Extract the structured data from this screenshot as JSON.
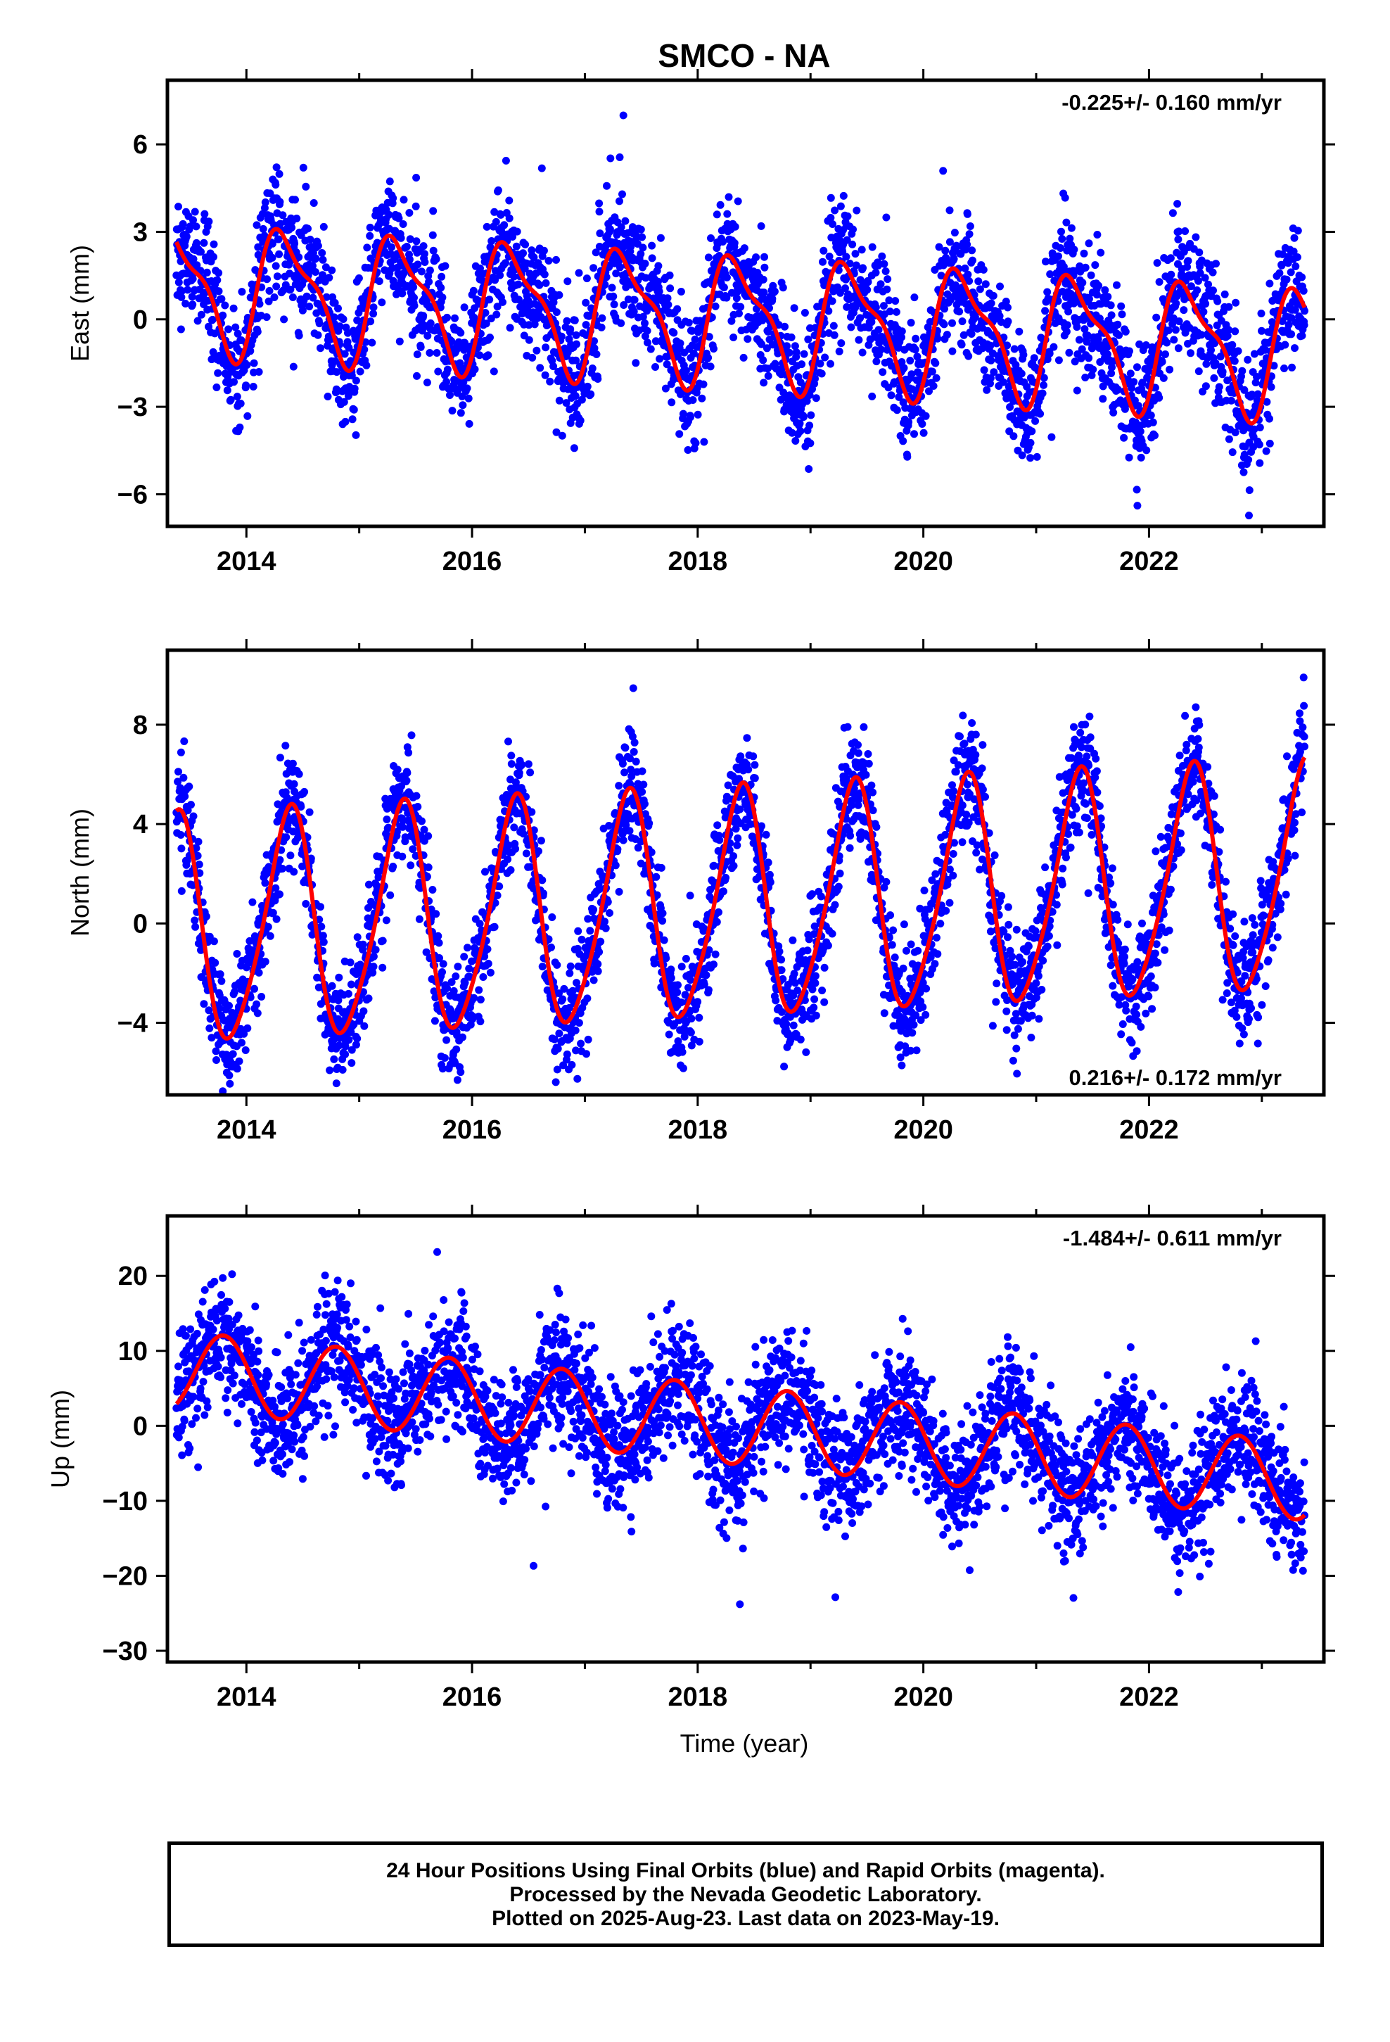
{
  "title": "SMCO - NA",
  "xlabel": "Time (year)",
  "footer": {
    "line1": "24 Hour Positions Using Final Orbits (blue) and Rapid Orbits (magenta).",
    "line2": "Processed by the Nevada Geodetic Laboratory.",
    "line3": "Plotted on 2025-Aug-23. Last data on 2023-May-19."
  },
  "colors": {
    "points": "#0000ff",
    "fit": "#ff0000",
    "axis": "#000000"
  },
  "chart_data": [
    {
      "type": "scatter",
      "component": "east",
      "ylabel": "East (mm)",
      "rate_label": "-0.225+/- 0.160 mm/yr",
      "xlim": [
        2013.3,
        2023.55
      ],
      "ylim": [
        -7.1,
        8.2
      ],
      "yticks": [
        -6,
        -3,
        0,
        3,
        6
      ],
      "ytick_labels": [
        "−6",
        "−3",
        "0",
        "3",
        "6"
      ],
      "xticks": [
        2014,
        2016,
        2018,
        2020,
        2022
      ],
      "fit": {
        "rate": -0.225,
        "x0": 2018.4,
        "offset": 0.0,
        "annual_cos": -1.25,
        "annual_sin": 1.6,
        "semi_cos": -0.55,
        "semi_sin": 0.45
      },
      "scatter_sd": 1.1
    },
    {
      "type": "scatter",
      "component": "north",
      "ylabel": "North (mm)",
      "rate_label": "0.216+/- 0.172 mm/yr",
      "xlim": [
        2013.3,
        2023.55
      ],
      "ylim": [
        -6.9,
        11.0
      ],
      "yticks": [
        -4,
        0,
        4,
        8
      ],
      "ytick_labels": [
        "−4",
        "0",
        "4",
        "8"
      ],
      "xticks": [
        2014,
        2016,
        2018,
        2020,
        2022
      ],
      "fit": {
        "rate": 0.216,
        "x0": 2018.4,
        "offset": 0.7,
        "annual_cos": -3.2,
        "annual_sin": 3.2,
        "semi_cos": 0.55,
        "semi_sin": -0.35
      },
      "scatter_sd": 1.15
    },
    {
      "type": "scatter",
      "component": "up",
      "ylabel": "Up (mm)",
      "rate_label": "-1.484+/- 0.611 mm/yr",
      "xlim": [
        2013.3,
        2023.55
      ],
      "ylim": [
        -31.5,
        28.0
      ],
      "yticks": [
        -30,
        -20,
        -10,
        0,
        10,
        20
      ],
      "ytick_labels": [
        "−30",
        "−20",
        "−10",
        "0",
        "10",
        "20"
      ],
      "xticks": [
        2014,
        2016,
        2018,
        2020,
        2022
      ],
      "fit": {
        "rate": -1.484,
        "x0": 2018.4,
        "offset": 0.0,
        "annual_cos": 1.5,
        "annual_sin": -5.0,
        "semi_cos": 0.0,
        "semi_sin": 0.0
      },
      "scatter_sd": 4.2
    }
  ]
}
